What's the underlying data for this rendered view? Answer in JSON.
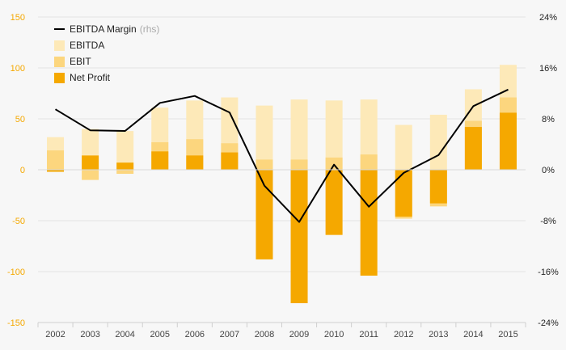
{
  "chart_data": {
    "type": "bar",
    "categories": [
      "2002",
      "2003",
      "2004",
      "2005",
      "2006",
      "2007",
      "2008",
      "2009",
      "2010",
      "2011",
      "2012",
      "2013",
      "2014",
      "2015"
    ],
    "series": [
      {
        "name": "EBITDA",
        "kind": "bar",
        "values": [
          32,
          40,
          38,
          61,
          68,
          71,
          63,
          69,
          68,
          69,
          44,
          54,
          79,
          103
        ]
      },
      {
        "name": "EBIT",
        "kind": "bar",
        "values": [
          19,
          -10,
          -4,
          27,
          30,
          26,
          10,
          10,
          12,
          15,
          -48,
          -36,
          48,
          71
        ]
      },
      {
        "name": "Net Profit",
        "kind": "bar",
        "values": [
          -2,
          14,
          7,
          18,
          14,
          17,
          -88,
          -131,
          -64,
          -104,
          -46,
          -33,
          42,
          56
        ]
      },
      {
        "name": "EBITDA Margin",
        "legend_suffix": "(rhs)",
        "kind": "line",
        "axis": "right",
        "values": [
          9.5,
          6.2,
          6.1,
          10.5,
          11.6,
          9.0,
          -2.5,
          -8.2,
          0.8,
          -5.8,
          -0.5,
          2.3,
          10.0,
          12.6
        ]
      }
    ],
    "ylim": [
      -150,
      150
    ],
    "yticks": [
      150,
      100,
      50,
      0,
      -50,
      -100,
      -150
    ],
    "y2lim": [
      -24,
      24
    ],
    "y2ticks": [
      "24%",
      "16%",
      "8%",
      "0%",
      "-8%",
      "-16%",
      "-24%"
    ],
    "legend_position": "top-left",
    "colors": {
      "EBITDA": "#fde9b8",
      "EBIT": "#fcd67e",
      "Net Profit": "#f5a800",
      "EBITDA Margin": "#000000",
      "grid": "#e3e3e3",
      "left_axis": "#f5a800"
    }
  }
}
